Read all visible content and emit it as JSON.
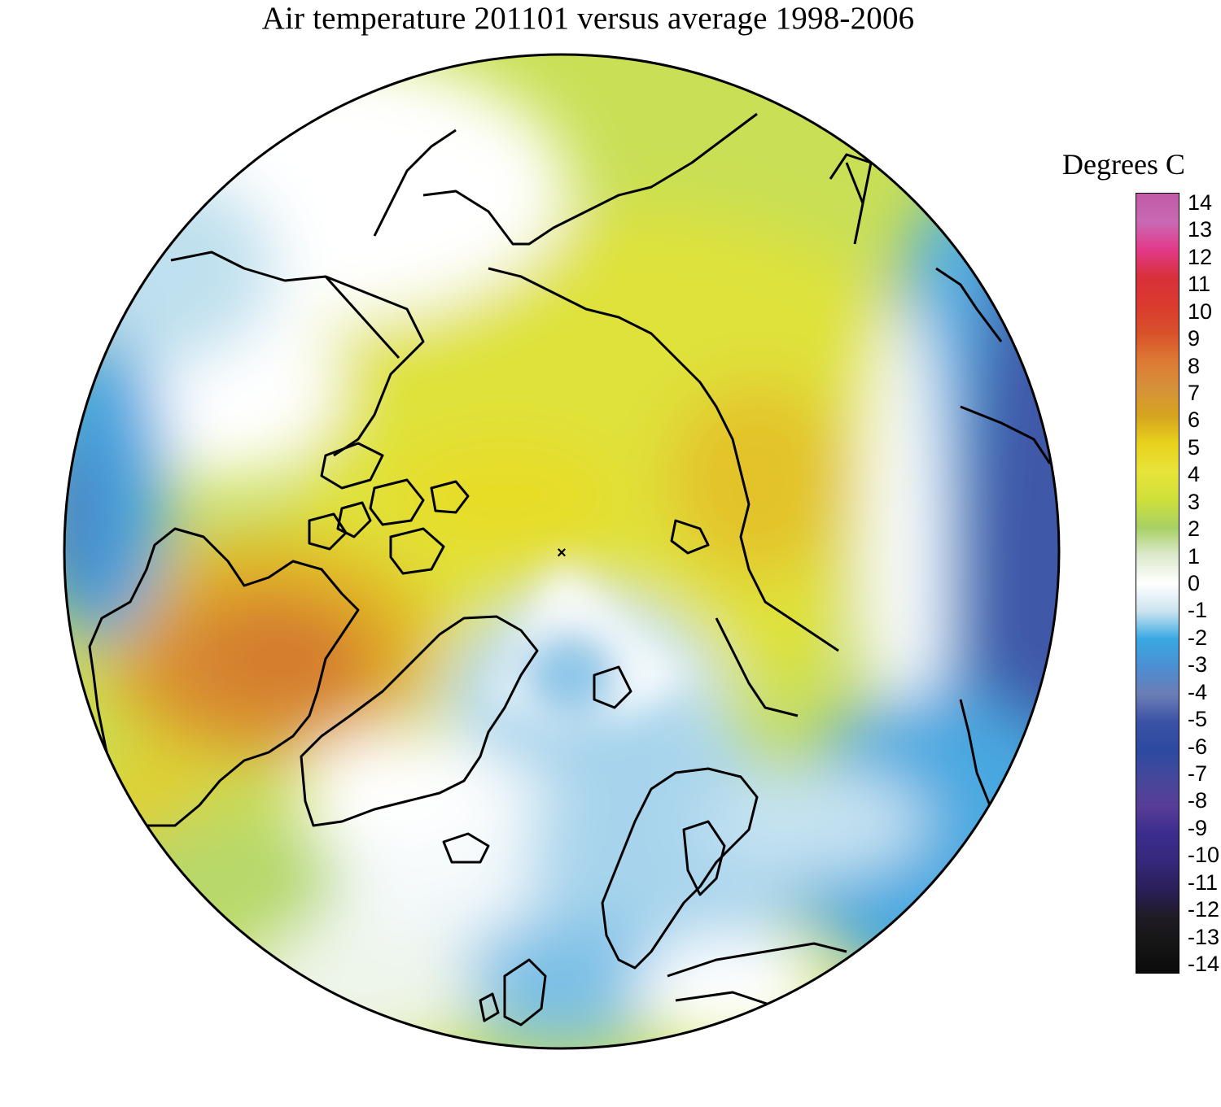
{
  "title": "Air temperature 201101 versus average 1998-2006",
  "legend": {
    "units": "Degrees C",
    "ticks": [
      "14",
      "13",
      "12",
      "11",
      "10",
      "9",
      "8",
      "7",
      "6",
      "5",
      "4",
      "3",
      "2",
      "1",
      "0",
      "-1",
      "-2",
      "-3",
      "-4",
      "-5",
      "-6",
      "-7",
      "-8",
      "-9",
      "-10",
      "-11",
      "-12",
      "-13",
      "-14"
    ],
    "colors": [
      "#c15aa8",
      "#c86ab4",
      "#e23a8a",
      "#d8303a",
      "#da3a2e",
      "#d8502a",
      "#dd7a34",
      "#d6913a",
      "#d6a51e",
      "#e8d21c",
      "#e8e43a",
      "#cfe03a",
      "#a7d064",
      "#dceacd",
      "#ffffff",
      "#cde4f0",
      "#39a9e3",
      "#4b8fd2",
      "#6c7db5",
      "#3a52a6",
      "#2c4aa0",
      "#45489b",
      "#583d96",
      "#3b2d8e",
      "#35287a",
      "#2b1f5a",
      "#1f1b24",
      "#151515",
      "#0a0a0a"
    ]
  },
  "map": {
    "projection": "north polar stereographic",
    "pole_marker": "×"
  },
  "colors": {
    "coastline": "#000000"
  }
}
